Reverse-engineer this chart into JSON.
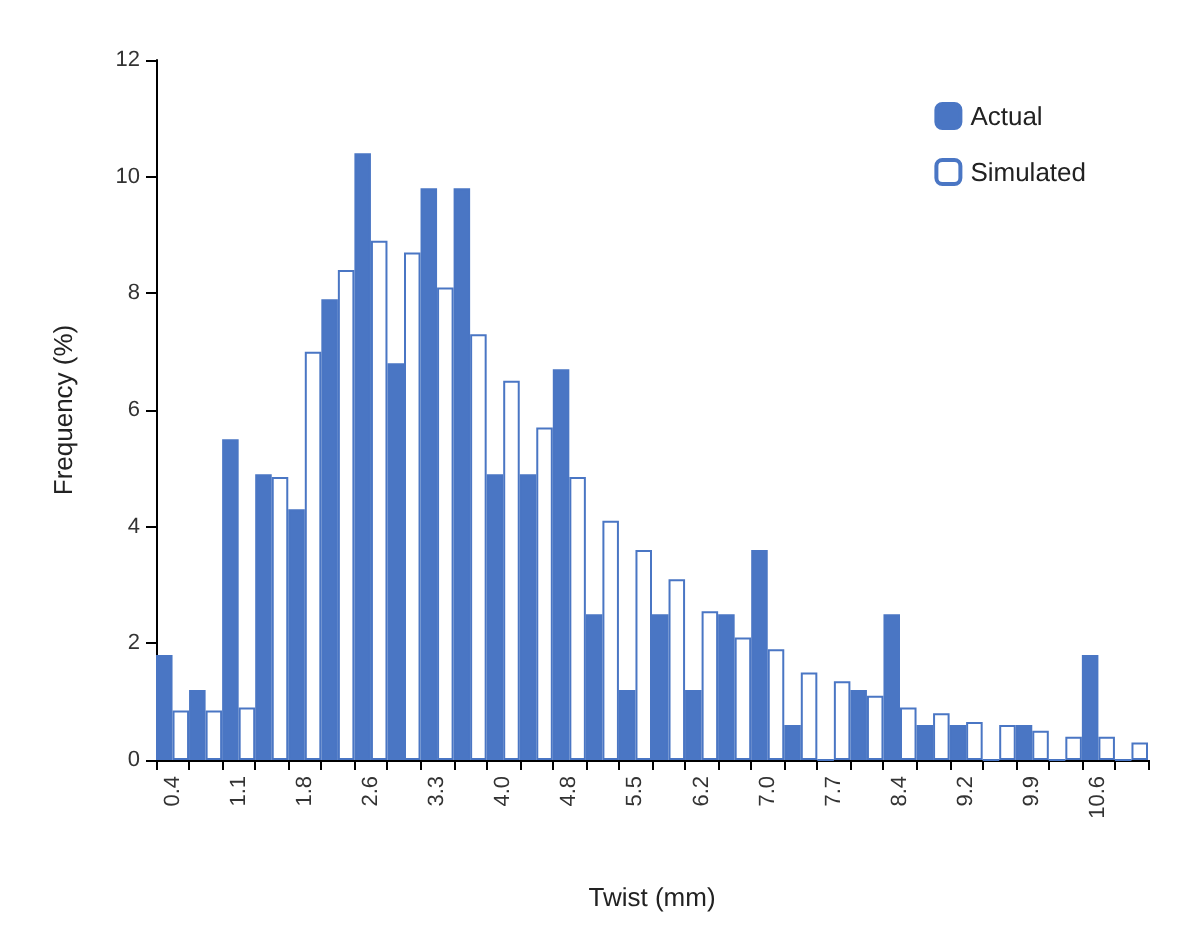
{
  "chart_data": {
    "type": "bar",
    "xlabel": "Twist (mm)",
    "ylabel": "Frequency (%)",
    "categories": [
      "0.4",
      null,
      "1.1",
      null,
      "1.8",
      null,
      "2.6",
      null,
      "3.3",
      null,
      "4.0",
      null,
      "4.8",
      null,
      "5.5",
      null,
      "6.2",
      null,
      "7.0",
      null,
      "7.7",
      null,
      "8.4",
      null,
      "9.2",
      null,
      "9.9",
      null,
      "10.6",
      null
    ],
    "series": [
      {
        "name": "Actual",
        "color": "#4a76c4",
        "values": [
          1.8,
          1.2,
          5.5,
          4.9,
          4.3,
          7.9,
          10.4,
          6.8,
          9.8,
          9.8,
          4.9,
          4.9,
          6.7,
          2.5,
          1.2,
          2.5,
          1.2,
          2.5,
          3.6,
          0.6,
          0,
          1.2,
          2.5,
          0.6,
          0.6,
          0,
          0.6,
          0,
          1.8,
          0
        ]
      },
      {
        "name": "Simulated",
        "color": "#ffffff",
        "values": [
          0.85,
          0.85,
          0.9,
          4.85,
          7.0,
          8.4,
          8.9,
          8.7,
          8.1,
          7.3,
          6.5,
          5.7,
          4.85,
          4.1,
          3.6,
          3.1,
          2.55,
          2.1,
          1.9,
          1.5,
          1.35,
          1.1,
          0.9,
          0.8,
          0.65,
          0.6,
          0.5,
          0.4,
          0.4,
          0.3
        ]
      }
    ],
    "ylim": [
      0,
      12
    ],
    "yticks": [
      0,
      2,
      4,
      6,
      8,
      10,
      12
    ],
    "grid": false,
    "legend": "top right"
  }
}
